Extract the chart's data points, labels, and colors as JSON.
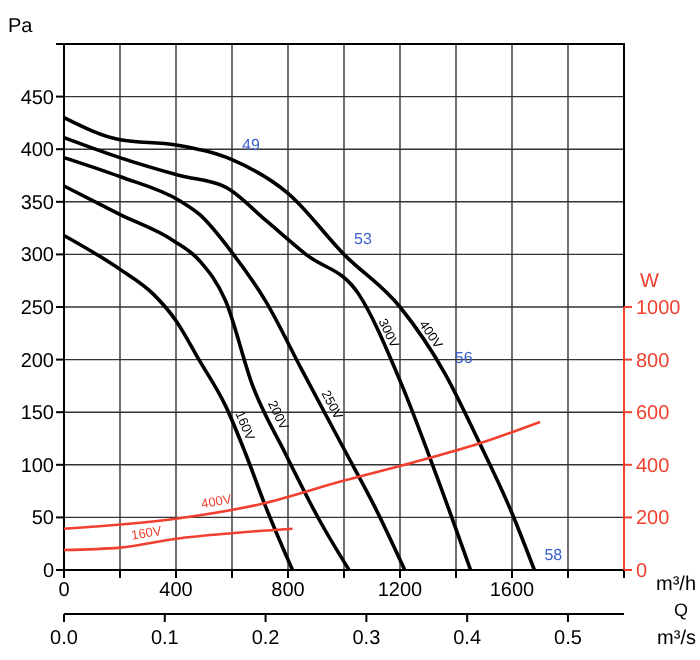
{
  "chart_data": {
    "type": "line",
    "ylabel": "Pa",
    "y2label": "W",
    "xlabel": "m³/h",
    "x2label": "m³/s",
    "xlim": [
      0,
      2000
    ],
    "xticks": [
      0,
      {
        "value": 200,
        "label": null
      },
      400,
      {
        "value": 600,
        "label": null
      },
      800,
      {
        "value": 1000,
        "label": null
      },
      1200,
      {
        "value": 1400,
        "label": null
      },
      1600,
      {
        "value": 1800,
        "label": null
      },
      {
        "value": 2000,
        "label": null
      }
    ],
    "x2lim": [
      0,
      0.5556
    ],
    "x2ticks": [
      {
        "value": 0,
        "label": "0.0"
      },
      0.1,
      0.2,
      0.3,
      0.4,
      0.5
    ],
    "ylim": [
      0,
      500
    ],
    "yticks": [
      0,
      50,
      100,
      150,
      200,
      250,
      300,
      350,
      400,
      450,
      {
        "value": 500,
        "label": null
      }
    ],
    "y2lim": [
      0,
      2000
    ],
    "y2ticks": [
      0,
      200,
      400,
      600,
      800,
      1000
    ],
    "grid": true,
    "marker": "none",
    "line_style": "solid",
    "series": [
      {
        "name": "400V",
        "color": "#000000",
        "x": [
          0,
          200,
          400,
          600,
          800,
          1000,
          1200,
          1360,
          1480,
          1600,
          1680
        ],
        "values": [
          430,
          409,
          404,
          390,
          358,
          300,
          250,
          187,
          123,
          54,
          0
        ]
      },
      {
        "name": "300V",
        "color": "#000000",
        "x": [
          0,
          199,
          413,
          577,
          722,
          864,
          1053,
          1200,
          1330,
          1452
        ],
        "values": [
          411,
          392,
          375,
          364,
          332,
          300,
          262,
          180,
          90,
          0
        ]
      },
      {
        "name": "250V",
        "color": "#000000",
        "x": [
          0,
          199,
          413,
          484,
          605,
          719,
          850,
          1000,
          1110,
          1217
        ],
        "values": [
          392,
          374,
          351,
          338,
          300,
          256,
          190,
          115,
          60,
          0
        ]
      },
      {
        "name": "200V",
        "color": "#000000",
        "x": [
          0,
          199,
          391,
          484,
          577,
          674,
          790,
          911,
          1018
        ],
        "values": [
          365,
          338,
          313,
          294,
          256,
          175,
          111,
          48,
          0
        ]
      },
      {
        "name": "160V",
        "color": "#000000",
        "x": [
          0,
          199,
          320,
          400,
          484,
          577,
          648,
          719,
          816
        ],
        "values": [
          318,
          286,
          262,
          237,
          199,
          156,
          111,
          61,
          0
        ]
      },
      {
        "name": "400V",
        "color": "#f04030",
        "axis": "y2",
        "x": [
          0,
          400,
          700,
          1000,
          1250,
          1480,
          1700
        ],
        "values": [
          157,
          195,
          250,
          340,
          410,
          480,
          563
        ]
      },
      {
        "name": "160V",
        "color": "#f04030",
        "axis": "y2",
        "x": [
          0,
          200,
          400,
          600,
          816
        ],
        "values": [
          76,
          85,
          119,
          140,
          157
        ]
      }
    ],
    "annotations": [
      {
        "text": "49",
        "x": 600,
        "y": 390
      },
      {
        "text": "53",
        "x": 1000,
        "y": 300
      },
      {
        "text": "56",
        "x": 1360,
        "y": 187
      },
      {
        "text": "58",
        "x": 1680,
        "y": 0
      },
      "Q"
    ]
  }
}
